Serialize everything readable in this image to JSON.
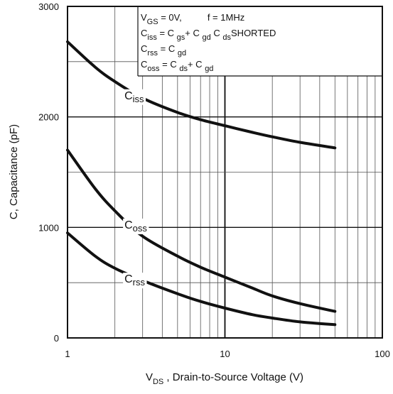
{
  "chart_data": {
    "type": "line",
    "x_scale": "log",
    "xlim": [
      1,
      100
    ],
    "ylim": [
      0,
      3000
    ],
    "x_ticks": [
      {
        "value": 1,
        "label": "1"
      },
      {
        "value": 10,
        "label": "10"
      },
      {
        "value": 100,
        "label": "100"
      }
    ],
    "y_ticks": [
      {
        "value": 0,
        "label": "0"
      },
      {
        "value": 1000,
        "label": "1000"
      },
      {
        "value": 2000,
        "label": "2000"
      },
      {
        "value": 3000,
        "label": "3000"
      }
    ],
    "ylabel": "C, Capacitance (pF)",
    "xlabel": {
      "main": "V",
      "sub": "DS",
      "rest": " , Drain-to-Source Voltage (V)"
    },
    "grid": true,
    "series": [
      {
        "name": "Ciss",
        "label_main": "C",
        "label_sub": "iss",
        "label_at": {
          "x": 2.3,
          "y": 2160
        },
        "x": [
          1,
          1.5,
          2,
          3,
          5,
          7,
          10,
          15,
          20,
          30,
          50
        ],
        "y": [
          2680,
          2450,
          2320,
          2170,
          2040,
          1975,
          1920,
          1860,
          1820,
          1770,
          1720
        ]
      },
      {
        "name": "Coss",
        "label_main": "C",
        "label_sub": "oss",
        "label_at": {
          "x": 2.3,
          "y": 990
        },
        "x": [
          1,
          1.5,
          2,
          3,
          5,
          7,
          10,
          15,
          20,
          30,
          50
        ],
        "y": [
          1700,
          1350,
          1150,
          920,
          740,
          640,
          550,
          450,
          380,
          310,
          240
        ]
      },
      {
        "name": "Crss",
        "label_main": "C",
        "label_sub": "rss",
        "label_at": {
          "x": 2.3,
          "y": 500
        },
        "x": [
          1,
          1.5,
          2,
          3,
          5,
          7,
          10,
          15,
          20,
          30,
          50
        ],
        "y": [
          950,
          740,
          630,
          520,
          400,
          330,
          270,
          210,
          180,
          145,
          120
        ]
      }
    ],
    "annotation_lines": [
      [
        {
          "t": "V",
          "sub": false
        },
        {
          "t": "GS",
          "sub": true
        },
        {
          "t": " = 0V,",
          "sub": false
        },
        {
          "t": "          f = 1MHz",
          "sub": false
        }
      ],
      [
        {
          "t": "C",
          "sub": false
        },
        {
          "t": "iss",
          "sub": true
        },
        {
          "t": " = C ",
          "sub": false
        },
        {
          "t": "gs",
          "sub": true
        },
        {
          "t": "+ C ",
          "sub": false
        },
        {
          "t": "gd",
          "sub": true
        },
        {
          "t": " C ",
          "sub": false
        },
        {
          "t": "ds",
          "sub": true
        },
        {
          "t": "SHORTED",
          "sub": false
        }
      ],
      [
        {
          "t": "C",
          "sub": false
        },
        {
          "t": "rss",
          "sub": true
        },
        {
          "t": " = C ",
          "sub": false
        },
        {
          "t": "gd",
          "sub": true
        }
      ],
      [
        {
          "t": "C",
          "sub": false
        },
        {
          "t": "oss",
          "sub": true
        },
        {
          "t": " = C ",
          "sub": false
        },
        {
          "t": "ds",
          "sub": true
        },
        {
          "t": "+ C ",
          "sub": false
        },
        {
          "t": "gd",
          "sub": true
        }
      ]
    ]
  }
}
